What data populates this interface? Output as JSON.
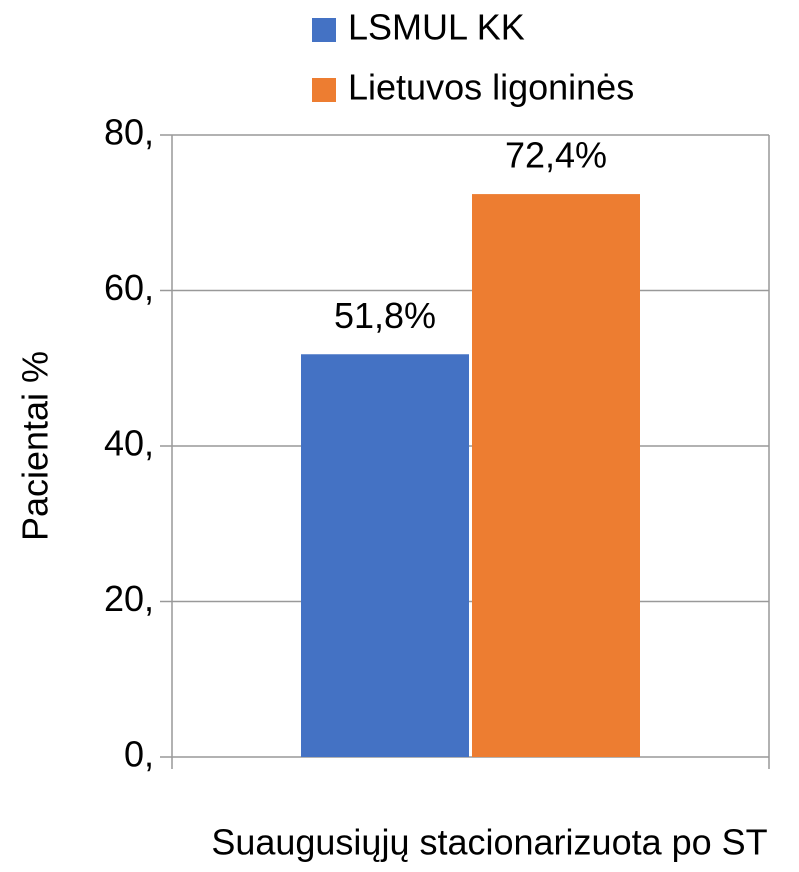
{
  "chart_data": {
    "type": "bar",
    "categories": [
      "Suaugusiųjų stacionarizuota po ST"
    ],
    "series": [
      {
        "name": "LSMUL KK",
        "color": "#4472c4",
        "values": [
          51.8
        ],
        "value_labels": [
          "51,8%"
        ]
      },
      {
        "name": "Lietuvos ligoninės",
        "color": "#ed7d31",
        "values": [
          72.4
        ],
        "value_labels": [
          "72,4%"
        ]
      }
    ],
    "ylabel": "Pacientai %",
    "ylim": [
      0,
      80
    ],
    "yticks": [
      {
        "value": 0,
        "label": "0,"
      },
      {
        "value": 20,
        "label": "20,"
      },
      {
        "value": 40,
        "label": "40,"
      },
      {
        "value": 60,
        "label": "60,"
      },
      {
        "value": 80,
        "label": "80,"
      }
    ],
    "grid": true,
    "legend": "top"
  }
}
